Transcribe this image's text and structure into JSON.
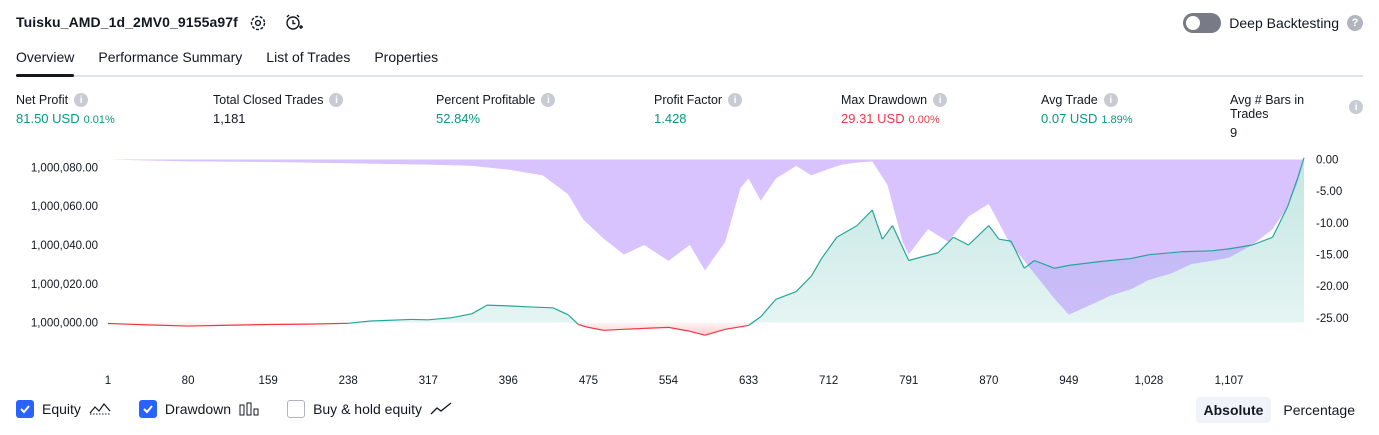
{
  "header": {
    "title": "Tuisku_AMD_1d_2MV0_9155a97f",
    "icons": [
      "settings-icon",
      "alarm-add-icon"
    ],
    "deep_backtesting_label": "Deep Backtesting",
    "deep_backtesting_on": false,
    "help": "?"
  },
  "tabs": [
    {
      "label": "Overview",
      "active": true
    },
    {
      "label": "Performance Summary",
      "active": false
    },
    {
      "label": "List of Trades",
      "active": false
    },
    {
      "label": "Properties",
      "active": false
    }
  ],
  "metrics": [
    {
      "label": "Net Profit",
      "value": "81.50 USD",
      "pct": "0.01%",
      "color": "#089981"
    },
    {
      "label": "Total Closed Trades",
      "value": "1,181",
      "pct": "",
      "color": "#131722"
    },
    {
      "label": "Percent Profitable",
      "value": "52.84%",
      "pct": "",
      "color": "#089981"
    },
    {
      "label": "Profit Factor",
      "value": "1.428",
      "pct": "",
      "color": "#089981"
    },
    {
      "label": "Max Drawdown",
      "value": "29.31 USD",
      "pct": "0.00%",
      "color": "#f23645"
    },
    {
      "label": "Avg Trade",
      "value": "0.07 USD",
      "pct": "1.89%",
      "color": "#089981"
    },
    {
      "label": "Avg # Bars in Trades",
      "value": "9",
      "pct": "",
      "color": "#131722"
    }
  ],
  "chart_data": {
    "type": "area",
    "x_ticks": [
      "1",
      "80",
      "159",
      "238",
      "317",
      "396",
      "475",
      "554",
      "633",
      "712",
      "791",
      "870",
      "949",
      "1,028",
      "1,107"
    ],
    "x_range": [
      1,
      1181
    ],
    "left_axis": {
      "ticks": [
        "1,000,080.00",
        "1,000,060.00",
        "1,000,040.00",
        "1,000,020.00",
        "1,000,000.00"
      ],
      "range": [
        999991,
        1000089
      ]
    },
    "right_axis": {
      "ticks": [
        "0.00",
        "-5.00",
        "-10.00",
        "-15.00",
        "-20.00",
        "-25.00"
      ],
      "range": [
        -28.5,
        1.5
      ]
    },
    "series": [
      {
        "name": "Equity",
        "color": "#26a69a",
        "negative_color": "#f23645",
        "points": [
          [
            1,
            999999.5
          ],
          [
            40,
            999998.8
          ],
          [
            80,
            999998.2
          ],
          [
            120,
            999998.6
          ],
          [
            159,
            999999.0
          ],
          [
            200,
            999999.2
          ],
          [
            238,
            999999.6
          ],
          [
            260,
            1000000.8
          ],
          [
            300,
            1000001.6
          ],
          [
            317,
            1000001.4
          ],
          [
            340,
            1000002.5
          ],
          [
            360,
            1000004.5
          ],
          [
            375,
            1000009.0
          ],
          [
            396,
            1000008.6
          ],
          [
            420,
            1000008.0
          ],
          [
            440,
            1000007.6
          ],
          [
            455,
            1000004.0
          ],
          [
            465,
            999999.0
          ],
          [
            475,
            999997.5
          ],
          [
            490,
            999996.0
          ],
          [
            510,
            999996.5
          ],
          [
            530,
            999997.0
          ],
          [
            554,
            999997.5
          ],
          [
            575,
            999995.5
          ],
          [
            590,
            999993.5
          ],
          [
            610,
            999996.5
          ],
          [
            633,
            999998.5
          ],
          [
            645,
            1000003.0
          ],
          [
            660,
            1000012.0
          ],
          [
            680,
            1000016.0
          ],
          [
            695,
            1000024.0
          ],
          [
            705,
            1000033.0
          ],
          [
            720,
            1000044.0
          ],
          [
            740,
            1000050.0
          ],
          [
            755,
            1000058.0
          ],
          [
            765,
            1000043.0
          ],
          [
            775,
            1000050.0
          ],
          [
            791,
            1000032.0
          ],
          [
            805,
            1000034.0
          ],
          [
            820,
            1000036.0
          ],
          [
            835,
            1000044.0
          ],
          [
            850,
            1000040.0
          ],
          [
            870,
            1000050.0
          ],
          [
            880,
            1000043.0
          ],
          [
            892,
            1000042.0
          ],
          [
            905,
            1000028.0
          ],
          [
            915,
            1000032.0
          ],
          [
            925,
            1000030.0
          ],
          [
            935,
            1000028.0
          ],
          [
            949,
            1000029.5
          ],
          [
            980,
            1000031.5
          ],
          [
            1010,
            1000033.0
          ],
          [
            1028,
            1000035.0
          ],
          [
            1060,
            1000036.5
          ],
          [
            1090,
            1000037.0
          ],
          [
            1107,
            1000038.0
          ],
          [
            1130,
            1000040.0
          ],
          [
            1150,
            1000044.0
          ],
          [
            1165,
            1000060.0
          ],
          [
            1175,
            1000075.0
          ],
          [
            1181,
            1000085.0
          ]
        ]
      },
      {
        "name": "Drawdown",
        "color": "#b388ff",
        "points": [
          [
            1,
            0.0
          ],
          [
            80,
            -0.3
          ],
          [
            159,
            -0.4
          ],
          [
            238,
            -0.6
          ],
          [
            317,
            -0.8
          ],
          [
            360,
            -1.0
          ],
          [
            396,
            -1.6
          ],
          [
            430,
            -2.5
          ],
          [
            455,
            -5.5
          ],
          [
            470,
            -9.5
          ],
          [
            490,
            -12.5
          ],
          [
            510,
            -15.0
          ],
          [
            530,
            -13.5
          ],
          [
            554,
            -16.0
          ],
          [
            575,
            -13.5
          ],
          [
            590,
            -17.5
          ],
          [
            610,
            -13.0
          ],
          [
            625,
            -4.5
          ],
          [
            633,
            -3.0
          ],
          [
            645,
            -6.5
          ],
          [
            660,
            -3.0
          ],
          [
            680,
            -1.0
          ],
          [
            695,
            -2.5
          ],
          [
            712,
            -1.5
          ],
          [
            725,
            -0.8
          ],
          [
            740,
            -0.5
          ],
          [
            755,
            -0.3
          ],
          [
            770,
            -4.0
          ],
          [
            785,
            -13.0
          ],
          [
            791,
            -15.0
          ],
          [
            810,
            -11.0
          ],
          [
            830,
            -13.0
          ],
          [
            850,
            -9.0
          ],
          [
            870,
            -7.0
          ],
          [
            890,
            -13.0
          ],
          [
            905,
            -16.0
          ],
          [
            920,
            -19.0
          ],
          [
            935,
            -22.0
          ],
          [
            949,
            -24.5
          ],
          [
            970,
            -23.0
          ],
          [
            990,
            -21.5
          ],
          [
            1010,
            -20.5
          ],
          [
            1028,
            -19.0
          ],
          [
            1050,
            -18.0
          ],
          [
            1070,
            -16.5
          ],
          [
            1090,
            -16.0
          ],
          [
            1107,
            -15.5
          ],
          [
            1130,
            -13.5
          ],
          [
            1150,
            -11.0
          ],
          [
            1165,
            -7.5
          ],
          [
            1175,
            -3.5
          ],
          [
            1181,
            0.0
          ]
        ]
      }
    ]
  },
  "legend": {
    "items": [
      {
        "label": "Equity",
        "checked": true
      },
      {
        "label": "Drawdown",
        "checked": true
      },
      {
        "label": "Buy & hold equity",
        "checked": false
      }
    ]
  },
  "modes": [
    {
      "label": "Absolute",
      "active": true
    },
    {
      "label": "Percentage",
      "active": false
    }
  ]
}
